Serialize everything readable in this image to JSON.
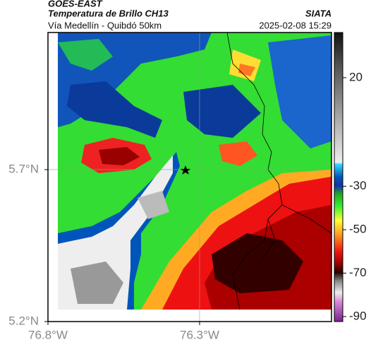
{
  "header": {
    "source": "GOES-EAST",
    "title": "Temperatura de Brillo CH13",
    "agency": "SIATA",
    "subtitle": "Vía Medellín - Quibdó 50km",
    "timestamp": "2025-02-08 15:29"
  },
  "map": {
    "xlim": [
      -76.8,
      -75.865
    ],
    "ylim": [
      5.2,
      6.151
    ],
    "xticks": [
      {
        "value": -76.8,
        "label": "76.8°W"
      },
      {
        "value": -76.3,
        "label": "76.3°W"
      }
    ],
    "yticks": [
      {
        "value": 5.2,
        "label": "5.2°N"
      },
      {
        "value": 5.7,
        "label": "5.7°N"
      }
    ],
    "colorbar": {
      "clim": [
        -92.3,
        40.8
      ],
      "ticks": [
        20,
        -30,
        -50,
        -70,
        -90
      ]
    }
  }
}
